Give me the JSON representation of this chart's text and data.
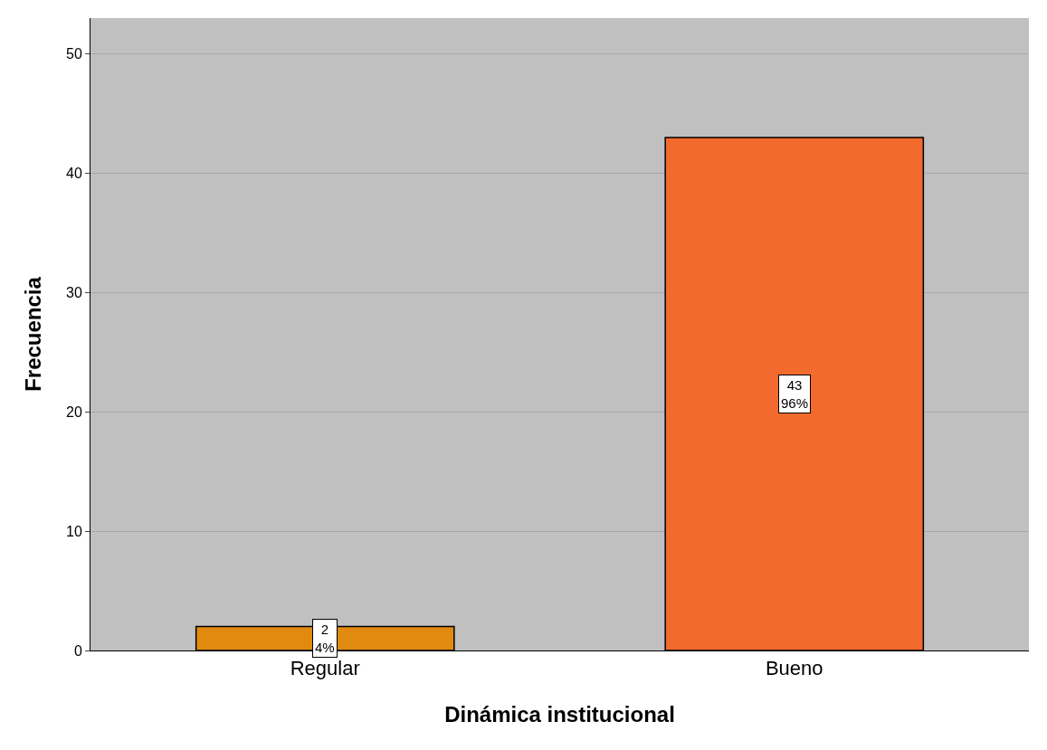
{
  "chart_data": {
    "type": "bar",
    "xlabel": "Dinámica institucional",
    "ylabel": "Frecuencia",
    "categories": [
      "Regular",
      "Bueno"
    ],
    "values": [
      2,
      43
    ],
    "colors": [
      "#e08a10",
      "#f26a2e"
    ],
    "value_labels": [
      "2\n4%",
      "43\n96%"
    ],
    "ylim": [
      0,
      53
    ],
    "yticks": [
      0,
      10,
      20,
      30,
      40,
      50
    ],
    "grid": "y"
  }
}
